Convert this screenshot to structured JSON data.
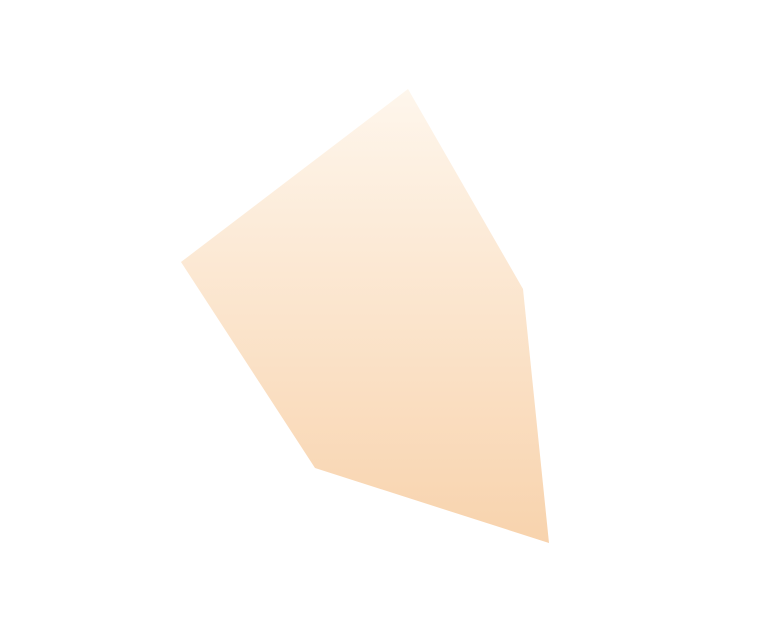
{
  "canvas": {
    "background_color": "#ffffff"
  },
  "shape": {
    "kind": "pentagon",
    "gradient": {
      "direction": "top-to-bottom",
      "top_color": "#fef6ec",
      "bottom_color": "#f8d3ad"
    }
  }
}
